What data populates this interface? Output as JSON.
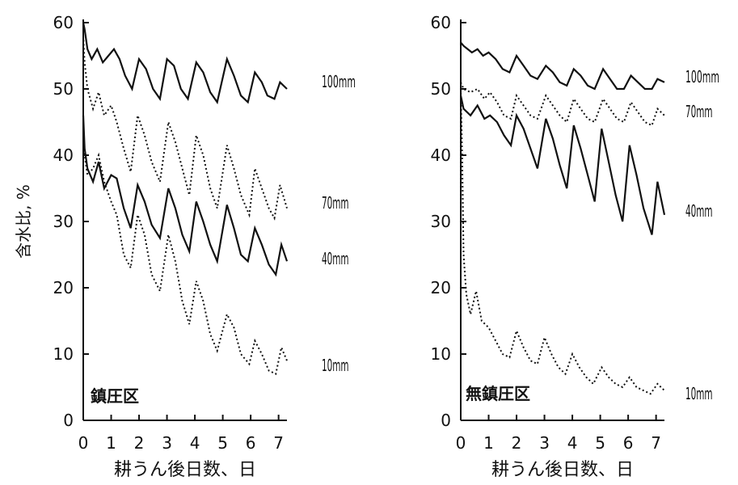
{
  "chart_data": [
    {
      "type": "line",
      "panel_label": "鎮圧区",
      "ylabel": "含水比, %",
      "xlabel": "耕うん後日数、日",
      "xlim": [
        0,
        7.3
      ],
      "ylim": [
        0,
        60
      ],
      "x_ticks": [
        0,
        1,
        2,
        3,
        4,
        5,
        6,
        7
      ],
      "y_ticks": [
        0,
        10,
        20,
        30,
        40,
        50,
        60
      ],
      "series": [
        {
          "name": "100mm",
          "style": "solid",
          "points": [
            [
              0,
              60
            ],
            [
              0.05,
              59
            ],
            [
              0.15,
              56
            ],
            [
              0.3,
              54.5
            ],
            [
              0.5,
              56
            ],
            [
              0.7,
              54
            ],
            [
              0.9,
              55
            ],
            [
              1.1,
              56
            ],
            [
              1.3,
              54.5
            ],
            [
              1.5,
              52
            ],
            [
              1.75,
              50
            ],
            [
              2.0,
              54.5
            ],
            [
              2.25,
              53
            ],
            [
              2.5,
              50
            ],
            [
              2.75,
              48.5
            ],
            [
              3.0,
              54.5
            ],
            [
              3.25,
              53.5
            ],
            [
              3.5,
              50
            ],
            [
              3.75,
              48.5
            ],
            [
              4.05,
              54
            ],
            [
              4.3,
              52.5
            ],
            [
              4.55,
              49.5
            ],
            [
              4.8,
              48
            ],
            [
              5.15,
              54.5
            ],
            [
              5.4,
              52
            ],
            [
              5.65,
              49
            ],
            [
              5.9,
              48
            ],
            [
              6.15,
              52.5
            ],
            [
              6.4,
              51
            ],
            [
              6.6,
              49
            ],
            [
              6.85,
              48.5
            ],
            [
              7.05,
              51
            ],
            [
              7.3,
              50
            ]
          ]
        },
        {
          "name": "70mm",
          "style": "dotted",
          "points": [
            [
              0,
              58
            ],
            [
              0.05,
              54
            ],
            [
              0.15,
              50
            ],
            [
              0.35,
              47
            ],
            [
              0.55,
              49.5
            ],
            [
              0.75,
              46
            ],
            [
              1.0,
              47.5
            ],
            [
              1.2,
              45
            ],
            [
              1.45,
              41
            ],
            [
              1.7,
              37.5
            ],
            [
              1.95,
              46
            ],
            [
              2.2,
              43
            ],
            [
              2.45,
              39
            ],
            [
              2.75,
              36
            ],
            [
              3.05,
              45
            ],
            [
              3.3,
              42
            ],
            [
              3.55,
              38
            ],
            [
              3.8,
              34
            ],
            [
              4.05,
              43
            ],
            [
              4.3,
              40
            ],
            [
              4.55,
              35
            ],
            [
              4.8,
              32
            ],
            [
              5.15,
              41.5
            ],
            [
              5.4,
              38
            ],
            [
              5.65,
              34
            ],
            [
              5.95,
              31
            ],
            [
              6.15,
              38
            ],
            [
              6.4,
              35
            ],
            [
              6.65,
              32
            ],
            [
              6.85,
              30.5
            ],
            [
              7.05,
              35.5
            ],
            [
              7.3,
              32
            ]
          ]
        },
        {
          "name": "40mm",
          "style": "solid",
          "points": [
            [
              0,
              46
            ],
            [
              0.05,
              41
            ],
            [
              0.15,
              38
            ],
            [
              0.35,
              36
            ],
            [
              0.55,
              39
            ],
            [
              0.75,
              35
            ],
            [
              1.0,
              37
            ],
            [
              1.2,
              36.5
            ],
            [
              1.45,
              32
            ],
            [
              1.7,
              29
            ],
            [
              1.95,
              35.5
            ],
            [
              2.2,
              33
            ],
            [
              2.45,
              29.5
            ],
            [
              2.75,
              27.5
            ],
            [
              3.05,
              35
            ],
            [
              3.3,
              32
            ],
            [
              3.55,
              28
            ],
            [
              3.8,
              25.5
            ],
            [
              4.05,
              33
            ],
            [
              4.3,
              30
            ],
            [
              4.55,
              26.5
            ],
            [
              4.8,
              24
            ],
            [
              5.15,
              32.5
            ],
            [
              5.4,
              29
            ],
            [
              5.65,
              25
            ],
            [
              5.9,
              24
            ],
            [
              6.15,
              29
            ],
            [
              6.4,
              26.5
            ],
            [
              6.65,
              23.5
            ],
            [
              6.9,
              22
            ],
            [
              7.1,
              26.5
            ],
            [
              7.3,
              24
            ]
          ]
        },
        {
          "name": "10mm",
          "style": "dotted",
          "points": [
            [
              0,
              44
            ],
            [
              0.05,
              40
            ],
            [
              0.15,
              37
            ],
            [
              0.35,
              38
            ],
            [
              0.55,
              40
            ],
            [
              0.75,
              36
            ],
            [
              1.0,
              33
            ],
            [
              1.2,
              31
            ],
            [
              1.45,
              25
            ],
            [
              1.7,
              23
            ],
            [
              1.95,
              31
            ],
            [
              2.2,
              28
            ],
            [
              2.45,
              22
            ],
            [
              2.75,
              19.5
            ],
            [
              3.05,
              28
            ],
            [
              3.3,
              24
            ],
            [
              3.55,
              18
            ],
            [
              3.8,
              14.5
            ],
            [
              4.05,
              21
            ],
            [
              4.3,
              18
            ],
            [
              4.55,
              13
            ],
            [
              4.8,
              10.5
            ],
            [
              5.15,
              16
            ],
            [
              5.4,
              14
            ],
            [
              5.65,
              10
            ],
            [
              5.95,
              8.5
            ],
            [
              6.15,
              12
            ],
            [
              6.4,
              10
            ],
            [
              6.65,
              7.5
            ],
            [
              6.9,
              7
            ],
            [
              7.1,
              11
            ],
            [
              7.3,
              9
            ]
          ]
        }
      ]
    },
    {
      "type": "line",
      "panel_label": "無鎮圧区",
      "ylabel": "",
      "xlabel": "耕うん後日数、日",
      "xlim": [
        0,
        7.3
      ],
      "ylim": [
        0,
        60
      ],
      "x_ticks": [
        0,
        1,
        2,
        3,
        4,
        5,
        6,
        7
      ],
      "y_ticks": [
        0,
        10,
        20,
        30,
        40,
        50,
        60
      ],
      "series": [
        {
          "name": "100mm",
          "style": "solid",
          "points": [
            [
              0,
              57
            ],
            [
              0.1,
              56.5
            ],
            [
              0.4,
              55.5
            ],
            [
              0.6,
              56
            ],
            [
              0.8,
              55
            ],
            [
              1.0,
              55.5
            ],
            [
              1.25,
              54.5
            ],
            [
              1.5,
              53
            ],
            [
              1.75,
              52.5
            ],
            [
              2.0,
              55
            ],
            [
              2.25,
              53.5
            ],
            [
              2.5,
              52
            ],
            [
              2.75,
              51.5
            ],
            [
              3.05,
              53.5
            ],
            [
              3.3,
              52.5
            ],
            [
              3.55,
              51
            ],
            [
              3.8,
              50.5
            ],
            [
              4.05,
              53
            ],
            [
              4.3,
              52
            ],
            [
              4.55,
              50.5
            ],
            [
              4.8,
              50
            ],
            [
              5.1,
              53
            ],
            [
              5.35,
              51.5
            ],
            [
              5.6,
              50
            ],
            [
              5.85,
              50
            ],
            [
              6.1,
              52
            ],
            [
              6.35,
              51
            ],
            [
              6.6,
              50
            ],
            [
              6.85,
              50
            ],
            [
              7.05,
              51.5
            ],
            [
              7.3,
              51
            ]
          ]
        },
        {
          "name": "70mm",
          "style": "dotted",
          "points": [
            [
              0,
              51
            ],
            [
              0.1,
              50
            ],
            [
              0.35,
              49.5
            ],
            [
              0.6,
              50
            ],
            [
              0.85,
              48.5
            ],
            [
              1.05,
              49.5
            ],
            [
              1.3,
              48
            ],
            [
              1.55,
              46
            ],
            [
              1.8,
              45.5
            ],
            [
              2.0,
              49
            ],
            [
              2.25,
              47.5
            ],
            [
              2.5,
              46
            ],
            [
              2.75,
              45.5
            ],
            [
              3.05,
              49
            ],
            [
              3.3,
              47.5
            ],
            [
              3.55,
              46
            ],
            [
              3.8,
              45
            ],
            [
              4.05,
              48.5
            ],
            [
              4.3,
              47
            ],
            [
              4.55,
              45.5
            ],
            [
              4.8,
              45
            ],
            [
              5.1,
              48.5
            ],
            [
              5.35,
              47
            ],
            [
              5.6,
              45.5
            ],
            [
              5.85,
              45
            ],
            [
              6.1,
              48
            ],
            [
              6.35,
              46.5
            ],
            [
              6.6,
              45
            ],
            [
              6.85,
              44.5
            ],
            [
              7.05,
              47
            ],
            [
              7.3,
              46
            ]
          ]
        },
        {
          "name": "40mm",
          "style": "solid",
          "points": [
            [
              0,
              49
            ],
            [
              0.1,
              47
            ],
            [
              0.35,
              46
            ],
            [
              0.6,
              47.5
            ],
            [
              0.85,
              45.5
            ],
            [
              1.05,
              46
            ],
            [
              1.3,
              45
            ],
            [
              1.55,
              43
            ],
            [
              1.8,
              41.5
            ],
            [
              2.0,
              46
            ],
            [
              2.25,
              44
            ],
            [
              2.5,
              41
            ],
            [
              2.75,
              38
            ],
            [
              3.05,
              45.5
            ],
            [
              3.3,
              42.5
            ],
            [
              3.55,
              38.5
            ],
            [
              3.8,
              35
            ],
            [
              4.05,
              44.5
            ],
            [
              4.3,
              41
            ],
            [
              4.55,
              37
            ],
            [
              4.8,
              33
            ],
            [
              5.05,
              44
            ],
            [
              5.3,
              39
            ],
            [
              5.55,
              34
            ],
            [
              5.8,
              30
            ],
            [
              6.05,
              41.5
            ],
            [
              6.3,
              37
            ],
            [
              6.55,
              32
            ],
            [
              6.85,
              28
            ],
            [
              7.05,
              36
            ],
            [
              7.3,
              31
            ]
          ]
        },
        {
          "name": "10mm",
          "style": "dotted",
          "points": [
            [
              0,
              50
            ],
            [
              0.05,
              40
            ],
            [
              0.1,
              25
            ],
            [
              0.2,
              19
            ],
            [
              0.35,
              16
            ],
            [
              0.55,
              19.5
            ],
            [
              0.75,
              15
            ],
            [
              1.0,
              14
            ],
            [
              1.25,
              12
            ],
            [
              1.5,
              10
            ],
            [
              1.75,
              9.5
            ],
            [
              2.0,
              13.5
            ],
            [
              2.25,
              11
            ],
            [
              2.5,
              9
            ],
            [
              2.75,
              8.5
            ],
            [
              3.0,
              12.5
            ],
            [
              3.25,
              10
            ],
            [
              3.5,
              8
            ],
            [
              3.75,
              7
            ],
            [
              4.0,
              10
            ],
            [
              4.25,
              8
            ],
            [
              4.5,
              6.5
            ],
            [
              4.75,
              5.5
            ],
            [
              5.05,
              8
            ],
            [
              5.3,
              6.5
            ],
            [
              5.55,
              5.5
            ],
            [
              5.8,
              5
            ],
            [
              6.05,
              6.5
            ],
            [
              6.3,
              5
            ],
            [
              6.55,
              4.5
            ],
            [
              6.8,
              4
            ],
            [
              7.05,
              5.5
            ],
            [
              7.3,
              4.5
            ]
          ]
        }
      ]
    }
  ]
}
